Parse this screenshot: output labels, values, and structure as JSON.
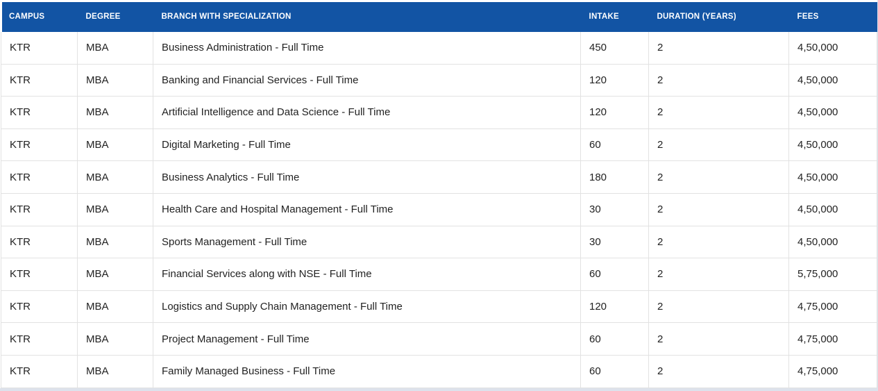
{
  "theme": {
    "header-bg": "#1254a4",
    "header-text": "#ffffff",
    "page-bg": "#dde2ec",
    "row-bg": "#ffffff",
    "border-color": "#e2e2e2",
    "text-color": "#222222"
  },
  "table": {
    "columns": [
      {
        "key": "campus",
        "label": "CAMPUS"
      },
      {
        "key": "degree",
        "label": "DEGREE"
      },
      {
        "key": "branch",
        "label": "BRANCH WITH SPECIALIZATION"
      },
      {
        "key": "intake",
        "label": "INTAKE"
      },
      {
        "key": "duration",
        "label": "DURATION (YEARS)"
      },
      {
        "key": "fees",
        "label": "FEES"
      }
    ],
    "rows": [
      {
        "campus": "KTR",
        "degree": "MBA",
        "branch": "Business Administration - Full Time",
        "intake": "450",
        "duration": "2",
        "fees": "4,50,000"
      },
      {
        "campus": "KTR",
        "degree": "MBA",
        "branch": "Banking and Financial Services - Full Time",
        "intake": "120",
        "duration": "2",
        "fees": "4,50,000"
      },
      {
        "campus": "KTR",
        "degree": "MBA",
        "branch": "Artificial Intelligence and Data Science - Full Time",
        "intake": "120",
        "duration": "2",
        "fees": "4,50,000"
      },
      {
        "campus": "KTR",
        "degree": "MBA",
        "branch": "Digital Marketing - Full Time",
        "intake": "60",
        "duration": "2",
        "fees": "4,50,000"
      },
      {
        "campus": "KTR",
        "degree": "MBA",
        "branch": "Business Analytics - Full Time",
        "intake": "180",
        "duration": "2",
        "fees": "4,50,000"
      },
      {
        "campus": "KTR",
        "degree": "MBA",
        "branch": "Health Care and Hospital Management - Full Time",
        "intake": "30",
        "duration": "2",
        "fees": "4,50,000"
      },
      {
        "campus": "KTR",
        "degree": "MBA",
        "branch": "Sports Management - Full Time",
        "intake": "30",
        "duration": "2",
        "fees": "4,50,000"
      },
      {
        "campus": "KTR",
        "degree": "MBA",
        "branch": "Financial Services along with NSE - Full Time",
        "intake": "60",
        "duration": "2",
        "fees": "5,75,000"
      },
      {
        "campus": "KTR",
        "degree": "MBA",
        "branch": "Logistics and Supply Chain Management - Full Time",
        "intake": "120",
        "duration": "2",
        "fees": "4,75,000"
      },
      {
        "campus": "KTR",
        "degree": "MBA",
        "branch": "Project Management - Full Time",
        "intake": "60",
        "duration": "2",
        "fees": "4,75,000"
      },
      {
        "campus": "KTR",
        "degree": "MBA",
        "branch": "Family Managed Business - Full Time",
        "intake": "60",
        "duration": "2",
        "fees": "4,75,000"
      }
    ]
  }
}
